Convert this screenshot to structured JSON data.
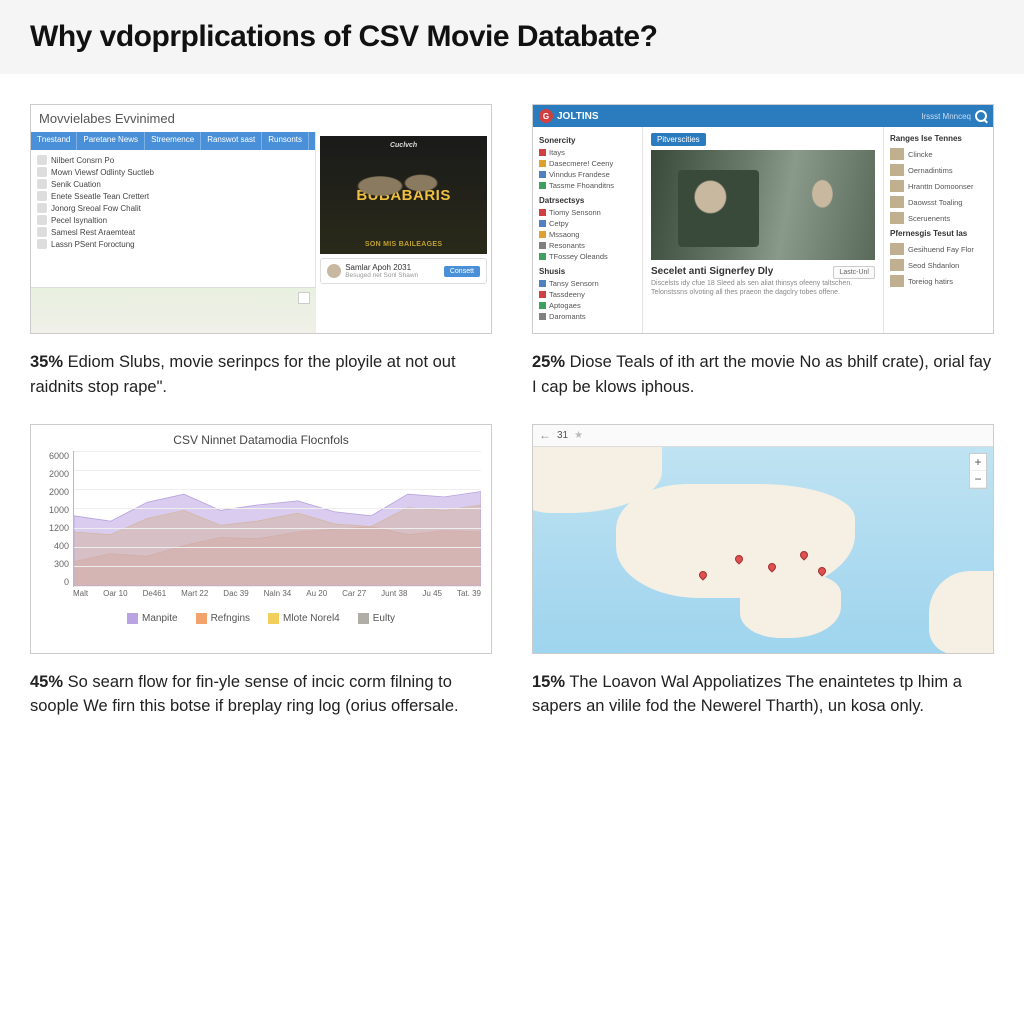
{
  "header": {
    "title": "Why vdoprplications of CSV Movie Databate?"
  },
  "panels": {
    "a": {
      "window_title": "Movvielabes Evvinimed",
      "tabs": [
        "Tnestand",
        "Paretane News",
        "Streemence",
        "Ranswot sast",
        "Runsonts"
      ],
      "rows": [
        "Nilbert Consrn Po",
        "Mown Viewsf Odlinty Suctleb",
        "Senik Cuation",
        "Enete Sseatle Tean Crettert",
        "Jonorg Sreoal Fow Chalit",
        "Pecel Isynaltion",
        "Samesl Rest Araemteat",
        "Lassn PSent Foroctung"
      ],
      "poster": {
        "top": "Cuclvch",
        "main": "BUBABARIS",
        "bottom": "SON MIS BAILEAGES"
      },
      "card": {
        "title": "Samlar Apoh 2031",
        "sub": "Besuged net Sonl Shawn",
        "btn": "Consett"
      },
      "caption_pct": "35%",
      "caption": "Ediom Slubs, movie serinpcs for the ployile at not out raidnits stop rape\"."
    },
    "b": {
      "brand": "JOLTINS",
      "nav_right": "Irssst Mnnceq",
      "sidebar": {
        "h1": "Sonercity",
        "g1": [
          {
            "c": "#d04040",
            "t": "Itays"
          },
          {
            "c": "#e0a030",
            "t": "Dasecmere! Ceeny"
          },
          {
            "c": "#5080c0",
            "t": "Vinndus Frandese"
          },
          {
            "c": "#40a060",
            "t": "Tassme Fhoanditns"
          }
        ],
        "h2": "Datrsectsys",
        "g2": [
          {
            "c": "#d04040",
            "t": "Tiomy Sensonn"
          },
          {
            "c": "#5080c0",
            "t": "Cetpy"
          },
          {
            "c": "#e0a030",
            "t": "Mssaong"
          },
          {
            "c": "#808080",
            "t": "Resonants"
          },
          {
            "c": "#40a060",
            "t": "TFossey Oleands"
          }
        ],
        "h3": "Shusis",
        "g3": [
          {
            "c": "#5080c0",
            "t": "Tansy Sensorn"
          },
          {
            "c": "#d04040",
            "t": "Tassdeeny"
          },
          {
            "c": "#40a060",
            "t": "Aptogaes"
          },
          {
            "c": "#808080",
            "t": "Daromants"
          }
        ]
      },
      "tag": "Pitverscities",
      "article_title": "Secelet anti Signerfey Dly",
      "article_body": "Discelsts idy cfue 18 Sleed als sen aliat thinsys ofeeny taltschen. Telonstssns olvoting all thes praeon the dagclry tobes offene.",
      "article_btn": "Lastc-Unl",
      "rail": {
        "h1": "Ranges Ise Tennes",
        "items1": [
          "Clincke",
          "Oernadintims",
          "Hranttn Domoonser",
          "Daowsst Toaling",
          "Sceruenents"
        ],
        "h2": "Pfernesgis Tesut Ias",
        "items2": [
          "Gesihuend Fay Flor",
          "Seod Shdanlon",
          "Toreiog hatirs"
        ]
      },
      "caption_pct": "25%",
      "caption": "Diose Teals of ith art the movie No as bhilf crate), orial fay I cap be klows iphous."
    },
    "c": {
      "title": "CSV Ninnet Datamodia Flocnfols",
      "y_ticks": [
        "6000",
        "2000",
        "2000",
        "1000",
        "1200",
        "400",
        "300",
        "0"
      ],
      "x_ticks": [
        "Malt",
        "Oar 10",
        "De461",
        "Mart 22",
        "Dac 39",
        "Naln 34",
        "Au 20",
        "Car 27",
        "Junt 38",
        "Ju 45",
        "Tat. 39"
      ],
      "legend": [
        {
          "label": "Manpite",
          "color": "#b9a3e0"
        },
        {
          "label": "Refngins",
          "color": "#f2a26b"
        },
        {
          "label": "Mlote Norel4",
          "color": "#f2cf5b"
        },
        {
          "label": "Eulty",
          "color": "#b0aca6"
        }
      ],
      "series": {
        "purple": {
          "color": "#b9a3e0",
          "fill": "rgba(185,163,224,0.55)",
          "pts": [
            [
              0,
              52
            ],
            [
              9,
              48
            ],
            [
              18,
              62
            ],
            [
              27,
              68
            ],
            [
              36,
              56
            ],
            [
              45,
              60
            ],
            [
              55,
              63
            ],
            [
              64,
              55
            ],
            [
              73,
              52
            ],
            [
              82,
              68
            ],
            [
              91,
              66
            ],
            [
              100,
              70
            ]
          ]
        },
        "yellow": {
          "color": "#f2cf5b",
          "fill": "rgba(242,207,91,0.55)",
          "pts": [
            [
              0,
              40
            ],
            [
              9,
              38
            ],
            [
              18,
              50
            ],
            [
              27,
              56
            ],
            [
              36,
              45
            ],
            [
              45,
              48
            ],
            [
              55,
              54
            ],
            [
              64,
              46
            ],
            [
              73,
              44
            ],
            [
              82,
              58
            ],
            [
              91,
              56
            ],
            [
              100,
              60
            ]
          ]
        },
        "orange": {
          "color": "#f2a26b",
          "fill": "rgba(242,162,107,0.6)",
          "pts": [
            [
              0,
              18
            ],
            [
              9,
              24
            ],
            [
              18,
              22
            ],
            [
              27,
              30
            ],
            [
              36,
              36
            ],
            [
              45,
              35
            ],
            [
              55,
              40
            ],
            [
              64,
              42
            ],
            [
              73,
              44
            ],
            [
              82,
              38
            ],
            [
              91,
              41
            ],
            [
              100,
              40
            ]
          ]
        }
      },
      "ylim": [
        0,
        100
      ],
      "grid_color": "#eeeeee",
      "caption_pct": "45%",
      "caption": "So searn flow for fin-yle sense of incic corm filning to soople We firn this botse if breplay ring log (orius offersale."
    },
    "d": {
      "toolbar": {
        "back": "←",
        "page": "31",
        "star": "★"
      },
      "pins": [
        [
          44,
          52
        ],
        [
          51,
          56
        ],
        [
          58,
          50
        ],
        [
          36,
          60
        ],
        [
          62,
          58
        ]
      ],
      "land_color": "#f5f0e3",
      "sea_color_top": "#bfe3f2",
      "sea_color_bottom": "#9ed5ee",
      "caption_pct": "15%",
      "caption": "The Loavon Wal Appoliatizes The enaintetes tp lhim a sapers an vilile fod the Newerel Tharth), un kosa only."
    }
  }
}
